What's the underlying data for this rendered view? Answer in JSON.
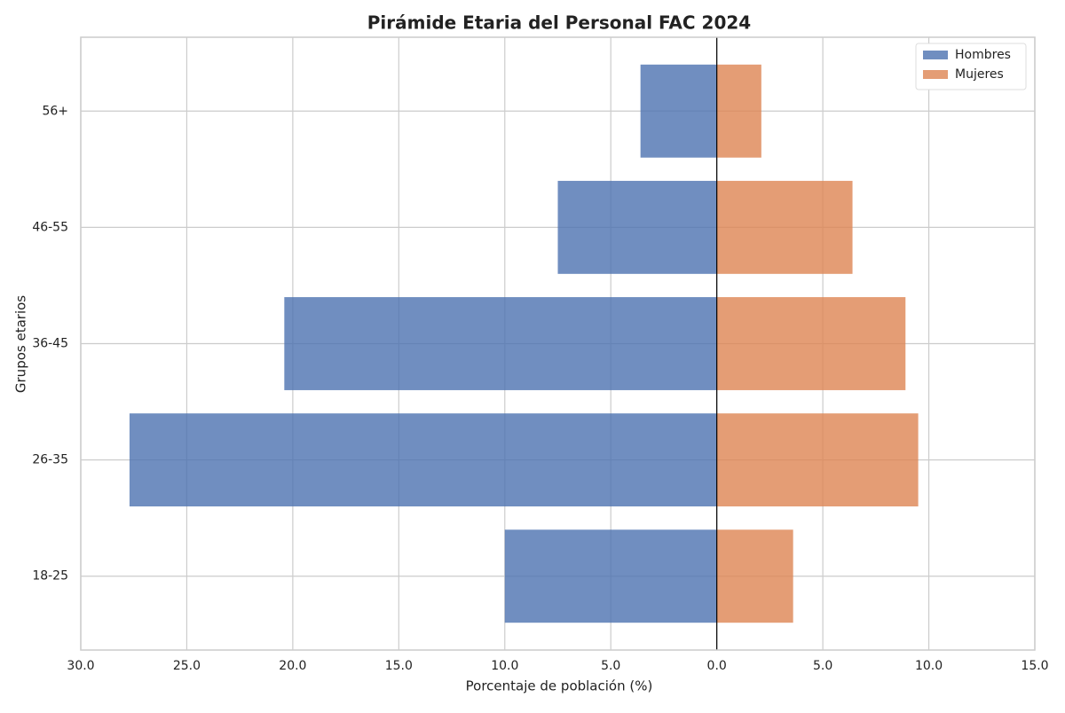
{
  "chart_data": {
    "type": "bar",
    "orientation": "horizontal",
    "title": "Pirámide Etaria del Personal FAC 2024",
    "x_label": "Porcentaje de población (%)",
    "y_label": "Grupos etarios",
    "categories": [
      "18-25",
      "26-35",
      "36-45",
      "46-55",
      "56+"
    ],
    "series": [
      {
        "name": "Hombres",
        "color": "#4c72b0",
        "values": [
          -10.0,
          -27.7,
          -20.4,
          -7.5,
          -3.6
        ]
      },
      {
        "name": "Mujeres",
        "color": "#dd8452",
        "values": [
          3.6,
          9.5,
          8.9,
          6.4,
          2.1
        ]
      }
    ],
    "xlim": [
      -30,
      15
    ],
    "xticks": [
      {
        "value": -30,
        "label": "30.0"
      },
      {
        "value": -25,
        "label": "25.0"
      },
      {
        "value": -20,
        "label": "20.0"
      },
      {
        "value": -15,
        "label": "15.0"
      },
      {
        "value": -10,
        "label": "10.0"
      },
      {
        "value": -5,
        "label": "5.0"
      },
      {
        "value": 0,
        "label": "0.0"
      },
      {
        "value": 5,
        "label": "5.0"
      },
      {
        "value": 10,
        "label": "10.0"
      },
      {
        "value": 15,
        "label": "15.0"
      }
    ],
    "grid": true,
    "legend": "upper right"
  }
}
